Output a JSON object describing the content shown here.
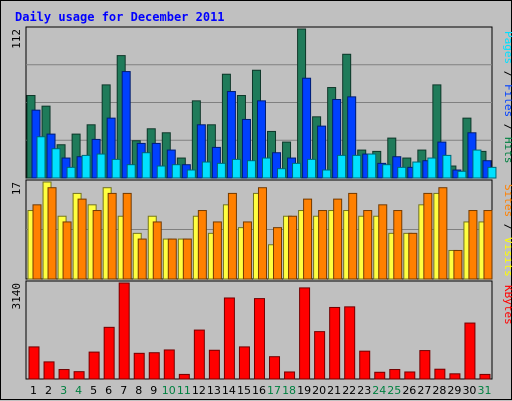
{
  "chart_data": {
    "type": "bar",
    "title": "Daily usage for December 2011",
    "days": [
      "1",
      "2",
      "3",
      "4",
      "5",
      "6",
      "7",
      "8",
      "9",
      "10",
      "11",
      "12",
      "13",
      "14",
      "15",
      "16",
      "17",
      "18",
      "19",
      "20",
      "21",
      "22",
      "23",
      "24",
      "25",
      "26",
      "27",
      "28",
      "29",
      "30",
      "31"
    ],
    "weekend_days": [
      "3",
      "4",
      "10",
      "11",
      "17",
      "18",
      "24",
      "25",
      "31"
    ],
    "panels": [
      {
        "ylabel_parts": [
          {
            "text": "Pages",
            "color": "#00e0ff"
          },
          {
            "text": " / ",
            "color": "#000000"
          },
          {
            "text": "Files",
            "color": "#0040ff"
          },
          {
            "text": " / ",
            "color": "#000000"
          },
          {
            "text": "Hits",
            "color": "#008040"
          }
        ],
        "max_label": "112",
        "ymax": 112,
        "series": [
          {
            "key": "hits",
            "color": "#1f7b5a",
            "values": [
              62,
              54,
              25,
              33,
              40,
              70,
              92,
              28,
              37,
              34,
              15,
              58,
              40,
              78,
              62,
              81,
              35,
              27,
              112,
              46,
              68,
              93,
              21,
              20,
              30,
              15,
              21,
              70,
              9,
              45,
              20
            ]
          },
          {
            "key": "files",
            "color": "#0040ff",
            "values": [
              51,
              33,
              15,
              16,
              29,
              45,
              80,
              26,
              26,
              21,
              10,
              40,
              23,
              65,
              44,
              58,
              19,
              15,
              75,
              39,
              59,
              61,
              18,
              11,
              16,
              8,
              13,
              27,
              6,
              34,
              13
            ]
          },
          {
            "key": "pages",
            "color": "#00e0ff",
            "values": [
              31,
              22,
              8,
              17,
              18,
              14,
              10,
              19,
              9,
              10,
              6,
              12,
              11,
              14,
              13,
              15,
              7,
              11,
              14,
              6,
              17,
              17,
              18,
              10,
              8,
              12,
              15,
              17,
              5,
              21,
              8
            ]
          }
        ]
      },
      {
        "ylabel_parts": [
          {
            "text": "Sites",
            "color": "#ff8000"
          },
          {
            "text": " / ",
            "color": "#000000"
          },
          {
            "text": "Visits",
            "color": "#ffff00"
          }
        ],
        "max_label": "17",
        "ymax": 17,
        "series": [
          {
            "key": "visits",
            "color": "#ffff40",
            "values": [
              12,
              17,
              11,
              15,
              13,
              16,
              11,
              8,
              11,
              7,
              7,
              11,
              8,
              13,
              9,
              15,
              6,
              11,
              12,
              11,
              12,
              12,
              11,
              11,
              8,
              8,
              13,
              15,
              5,
              10,
              10
            ]
          },
          {
            "key": "sites",
            "color": "#ff8000",
            "values": [
              13,
              16,
              10,
              14,
              12,
              15,
              15,
              7,
              10,
              7,
              7,
              12,
              10,
              15,
              10,
              16,
              9,
              11,
              14,
              12,
              14,
              15,
              12,
              13,
              12,
              8,
              15,
              16,
              5,
              12,
              12
            ]
          }
        ]
      },
      {
        "ylabel_parts": [
          {
            "text": "KBytes",
            "color": "#ff0000"
          }
        ],
        "max_label": "3140",
        "ymax": 3140,
        "series": [
          {
            "key": "kbytes",
            "color": "#ff0000",
            "values": [
              1050,
              560,
              310,
              240,
              880,
              1690,
              3140,
              840,
              860,
              950,
              150,
              1600,
              940,
              2650,
              1050,
              2630,
              730,
              230,
              2980,
              1550,
              2340,
              2360,
              910,
              220,
              310,
              230,
              930,
              320,
              170,
              1830,
              150
            ]
          }
        ]
      }
    ]
  }
}
